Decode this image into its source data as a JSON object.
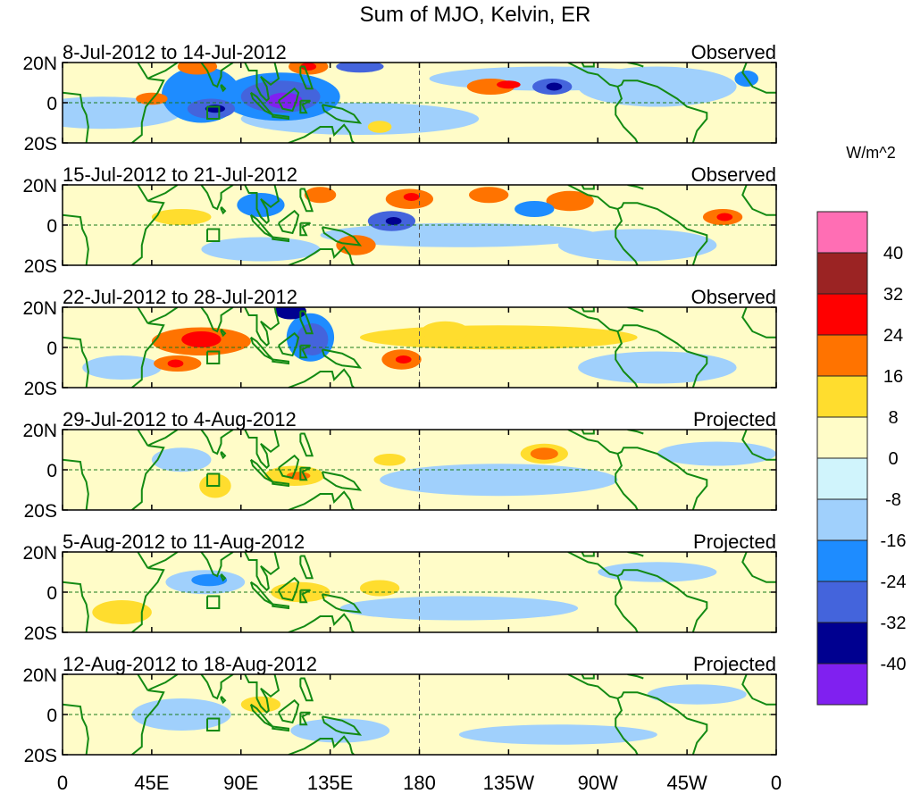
{
  "title": "Sum of MJO, Kelvin, ER",
  "units": "W/m^2",
  "lat_labels": [
    "20N",
    "0",
    "20S"
  ],
  "lon_ticks": [
    {
      "lon": 0,
      "label": "0"
    },
    {
      "lon": 45,
      "label": "45E"
    },
    {
      "lon": 90,
      "label": "90E"
    },
    {
      "lon": 135,
      "label": "135E"
    },
    {
      "lon": 180,
      "label": "180"
    },
    {
      "lon": 225,
      "label": "135W"
    },
    {
      "lon": 270,
      "label": "90W"
    },
    {
      "lon": 315,
      "label": "45W"
    },
    {
      "lon": 360,
      "label": "0"
    }
  ],
  "colorbar": {
    "labels": [
      "40",
      "32",
      "24",
      "16",
      "8",
      "0",
      "-8",
      "-16",
      "-24",
      "-32",
      "-40"
    ],
    "colors": [
      "#ff6eb4",
      "#9b2323",
      "#ff0000",
      "#ff7300",
      "#ffdd2e",
      "#fffcc8",
      "#d0f4fc",
      "#a0d0fc",
      "#1e8cff",
      "#4464dc",
      "#000090",
      "#8020f0"
    ]
  },
  "panels": [
    {
      "dates": "8-Jul-2012 to 14-Jul-2012",
      "status": "Observed",
      "anomalies": [
        [
          20,
          -5,
          40,
          8,
          -8
        ],
        [
          150,
          -8,
          60,
          8,
          -8
        ],
        [
          245,
          12,
          60,
          6,
          -8
        ],
        [
          300,
          8,
          40,
          10,
          -8
        ],
        [
          70,
          4,
          20,
          14,
          -16
        ],
        [
          110,
          3,
          30,
          12,
          -16
        ],
        [
          45,
          2,
          8,
          3,
          16
        ],
        [
          68,
          18,
          10,
          4,
          16
        ],
        [
          124,
          18,
          10,
          4,
          16
        ],
        [
          124,
          18,
          4,
          2,
          24
        ],
        [
          75,
          -3,
          12,
          5,
          -24
        ],
        [
          77,
          -3,
          5,
          2,
          -32
        ],
        [
          110,
          3,
          20,
          8,
          -24
        ],
        [
          112,
          1,
          9,
          4,
          -40
        ],
        [
          150,
          18,
          12,
          3,
          -24
        ],
        [
          216,
          8,
          12,
          4,
          16
        ],
        [
          225,
          9,
          6,
          2,
          24
        ],
        [
          247,
          8,
          10,
          4,
          -24
        ],
        [
          248,
          8,
          4,
          2,
          -32
        ],
        [
          345,
          12,
          6,
          4,
          -16
        ],
        [
          160,
          -12,
          6,
          3,
          8
        ]
      ]
    },
    {
      "dates": "15-Jul-2012 to 21-Jul-2012",
      "status": "Observed",
      "anomalies": [
        [
          200,
          -5,
          70,
          6,
          -8
        ],
        [
          100,
          -12,
          30,
          6,
          -8
        ],
        [
          290,
          -10,
          40,
          8,
          -8
        ],
        [
          60,
          4,
          15,
          4,
          8
        ],
        [
          100,
          10,
          12,
          6,
          -16
        ],
        [
          175,
          13,
          12,
          5,
          16
        ],
        [
          176,
          14,
          4,
          2,
          24
        ],
        [
          166,
          2,
          12,
          5,
          -24
        ],
        [
          167,
          2,
          4,
          2,
          -32
        ],
        [
          148,
          -10,
          10,
          5,
          16
        ],
        [
          256,
          12,
          12,
          5,
          16
        ],
        [
          333,
          4,
          10,
          4,
          16
        ],
        [
          334,
          4,
          4,
          2,
          24
        ],
        [
          238,
          8,
          10,
          4,
          -16
        ],
        [
          215,
          15,
          10,
          4,
          16
        ],
        [
          130,
          15,
          8,
          4,
          16
        ]
      ]
    },
    {
      "dates": "22-Jul-2012 to 28-Jul-2012",
      "status": "Observed",
      "anomalies": [
        [
          220,
          5,
          70,
          6,
          8
        ],
        [
          300,
          -10,
          40,
          8,
          -8
        ],
        [
          70,
          3,
          25,
          7,
          16
        ],
        [
          70,
          4,
          10,
          4,
          24
        ],
        [
          58,
          -8,
          12,
          4,
          16
        ],
        [
          57,
          -8,
          4,
          2,
          24
        ],
        [
          125,
          5,
          12,
          12,
          -16
        ],
        [
          126,
          4,
          8,
          8,
          -24
        ],
        [
          115,
          18,
          8,
          4,
          -32
        ],
        [
          171,
          -6,
          10,
          5,
          16
        ],
        [
          172,
          -6,
          4,
          2,
          24
        ],
        [
          193,
          8,
          12,
          5,
          8
        ],
        [
          30,
          -10,
          20,
          6,
          -8
        ]
      ]
    },
    {
      "dates": "29-Jul-2012 to 4-Aug-2012",
      "status": "Projected",
      "anomalies": [
        [
          220,
          -5,
          60,
          8,
          -8
        ],
        [
          330,
          8,
          30,
          6,
          -8
        ],
        [
          60,
          5,
          15,
          6,
          -8
        ],
        [
          243,
          8,
          12,
          5,
          8
        ],
        [
          243,
          8,
          7,
          3,
          16
        ],
        [
          77,
          -8,
          8,
          6,
          8
        ],
        [
          117,
          -3,
          15,
          5,
          8
        ],
        [
          119,
          -3,
          6,
          2,
          16
        ],
        [
          165,
          5,
          8,
          3,
          8
        ]
      ]
    },
    {
      "dates": "5-Aug-2012 to 11-Aug-2012",
      "status": "Projected",
      "anomalies": [
        [
          200,
          -8,
          60,
          6,
          -8
        ],
        [
          72,
          5,
          20,
          6,
          -8
        ],
        [
          74,
          6,
          9,
          3,
          -16
        ],
        [
          120,
          0,
          15,
          5,
          8
        ],
        [
          160,
          2,
          10,
          4,
          8
        ],
        [
          300,
          10,
          30,
          5,
          -8
        ],
        [
          30,
          -10,
          15,
          6,
          8
        ]
      ]
    },
    {
      "dates": "12-Aug-2012 to 18-Aug-2012",
      "status": "Projected",
      "anomalies": [
        [
          60,
          0,
          25,
          8,
          -8
        ],
        [
          140,
          -8,
          25,
          6,
          -8
        ],
        [
          250,
          -10,
          50,
          5,
          -8
        ],
        [
          320,
          10,
          25,
          5,
          -8
        ],
        [
          100,
          5,
          10,
          4,
          8
        ]
      ]
    }
  ]
}
